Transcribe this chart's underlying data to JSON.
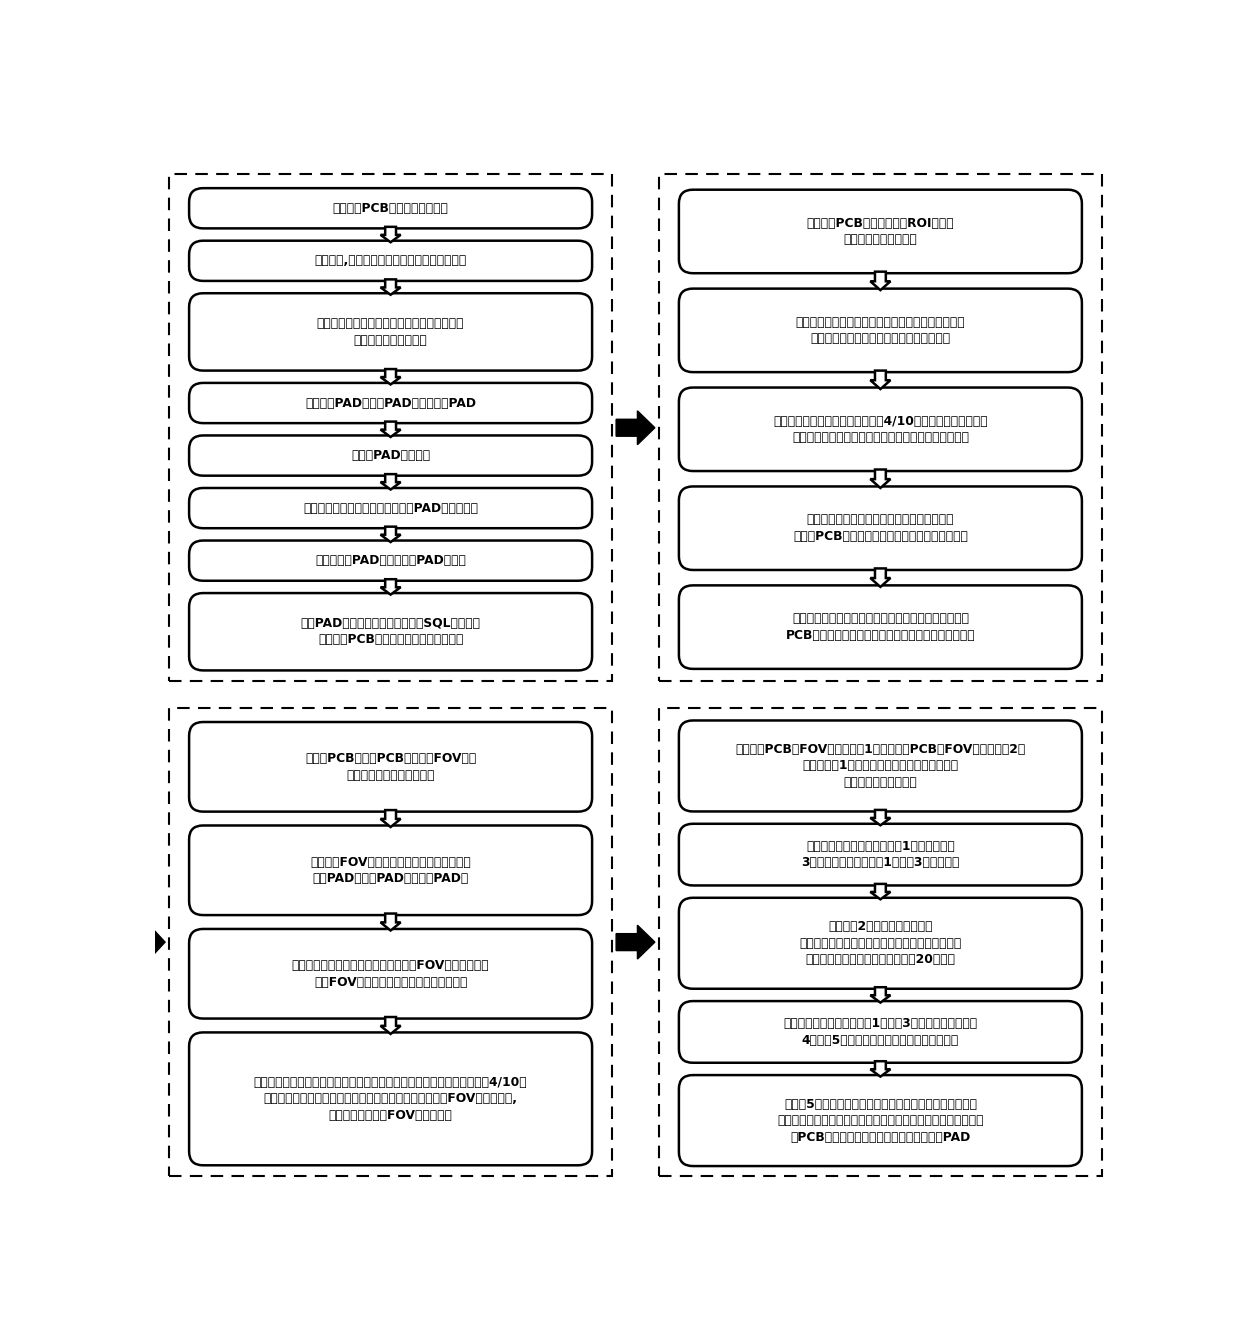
{
  "bg_color": "#ffffff",
  "text_color": "#000000",
  "panel1_boxes": [
    {
      "text": "采集标准PCB整板图像并二值化",
      "lines": 1
    },
    {
      "text": "阈值处理,提取前景图像连通域，并计算其数量",
      "lines": 1
    },
    {
      "text": "对每个连通域分别做圆形开运算和矩形开运算\n以及平行线对提取运算",
      "lines": 2
    },
    {
      "text": "得到圆形PAD、矩形PAD和平行线对PAD",
      "lines": 1
    },
    {
      "text": "对三种PAD求其属性",
      "lines": 1
    },
    {
      "text": "对单个连通域和上步分割出的三种PAD做减法运算",
      "lines": 1
    },
    {
      "text": "得到单直线PAD和特殊异类PAD的集合",
      "lines": 1
    },
    {
      "text": "各类PAD属性集合的属性，导入到SQL数据库，\n作为后续PCB板缺陷点分类的标准模板。",
      "lines": 2
    }
  ],
  "panel2_boxes": [
    {
      "text": "选择模板PCB整板四个角为ROI区域，\n每个区域制定搜索策略",
      "lines": 2
    },
    {
      "text": "计算特征多边形分别在模板图中的位置坐标以及待测\n图中的位置坐标，计算其行列坐标偏差求和",
      "lines": 2
    },
    {
      "text": "按照从小到大的排序仅留下中间的4/10的数据并进算均方差，\n将最为接近均方差的数据作为本次搜索策略的最终结果",
      "lines": 2
    },
    {
      "text": "得到四个角的四个数据并作为一组模板数据，\n对测试PCB板做以上重复的操作得到一组测试数据",
      "lines": 2
    },
    {
      "text": "将这两组数据作为透视变换的四组对应特征点，对测试\nPCB板作透视变换，得到图像为相定位得到的矫正图。",
      "lines": 2
    }
  ],
  "panel3_boxes": [
    {
      "text": "将模板PCB和测试PCB分成若干FOV块设\n定对应索引，制定对位策略",
      "lines": 2
    },
    {
      "text": "提取每个FOV的连通域并作开运算，分割得到\n圆形PAD和矩形PAD以及线对PAD；",
      "lines": 2
    },
    {
      "text": "分别计算上述分割出来的连通域在模板FOV的位置坐标、\n测试FOV的位置坐标，得到图中的位置坐标",
      "lines": 2
    },
    {
      "text": "并计算其行列坐标偏差并求和后按从小到大的顺序排列，只保护下中间的4/10的\n数据并其均方差，将和最为接近均方差的数据即作为本块FOV的标准偏差,\n根据该偏移量对该FOV块进行矫正",
      "lines": 3
    }
  ],
  "panel4_boxes": [
    {
      "text": "分割模板PCB板FOV块得到小图1，分割待测PCB板FOV块得到小图2，\n设模板小图1为模板，常规矩形区域在待测小图\n中寻找模板，进行定位",
      "lines": 3
    },
    {
      "text": "在待测小图上抠出和模板小图1一样大小的个\n3。按下来，对模板小图1和小图3作异或处理",
      "lines": 2
    },
    {
      "text": "作半径为2个像素的开运算得到\n疑似缺陷点，提取连通域，并对每个连通域求最小\n小外接矩形，每个矩形向四周扩充20个像素",
      "lines": 3
    },
    {
      "text": "模板扩充矩形的大小在小图1和小图3抠出一样大小的小图\n4和小图5后，作轮廓最差处理得到轮廓核点。",
      "lines": 2
    },
    {
      "text": "在小图5上给测到的疑似缺陷点设为缺陷区域，提取该区域\n的形态学特征和灰度等特征，确定缺陷块类型并提取轮廓点，比\n对PCB模板创建的数据库，确定改点为哪种PAD",
      "lines": 3
    }
  ]
}
